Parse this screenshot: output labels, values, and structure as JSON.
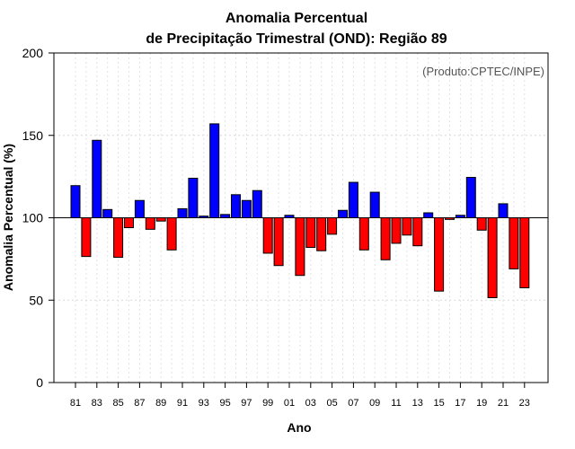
{
  "chart_data": {
    "type": "bar",
    "title_line1": "Anomalia Percentual",
    "title_line2": "de Precipitação Trimestral (OND): Região 89",
    "xlabel": "Ano",
    "ylabel": "Anomalia Percentual (%)",
    "credit": "(Produto:CPTEC/INPE)",
    "ylim": [
      0,
      200
    ],
    "yticks": [
      0,
      50,
      100,
      150,
      200
    ],
    "baseline": 100,
    "colors": {
      "above": "#0000ff",
      "below": "#ff0000",
      "edge": "#000000"
    },
    "categories": [
      "81",
      "82",
      "83",
      "84",
      "85",
      "86",
      "87",
      "88",
      "89",
      "90",
      "91",
      "92",
      "93",
      "94",
      "95",
      "96",
      "97",
      "98",
      "99",
      "00",
      "01",
      "02",
      "03",
      "04",
      "05",
      "06",
      "07",
      "08",
      "09",
      "10",
      "11",
      "12",
      "13",
      "14",
      "15",
      "16",
      "17",
      "18",
      "19",
      "20",
      "21",
      "22",
      "23"
    ],
    "xtick_labels": [
      "81",
      "83",
      "85",
      "87",
      "89",
      "91",
      "93",
      "95",
      "97",
      "99",
      "01",
      "03",
      "05",
      "07",
      "09",
      "11",
      "13",
      "15",
      "17",
      "19",
      "21",
      "23"
    ],
    "values": [
      119.5,
      76.5,
      147,
      105,
      76,
      94,
      110.5,
      93,
      98,
      80.5,
      105.5,
      124,
      101,
      157,
      102,
      114,
      110.5,
      116.5,
      78.5,
      71,
      101.5,
      65,
      82,
      80,
      90,
      104.5,
      121.5,
      80.5,
      115.5,
      74.5,
      84.5,
      89.5,
      83,
      103,
      55.5,
      99,
      101.5,
      124.5,
      92.5,
      51.5,
      108.5,
      69,
      57.5
    ]
  }
}
